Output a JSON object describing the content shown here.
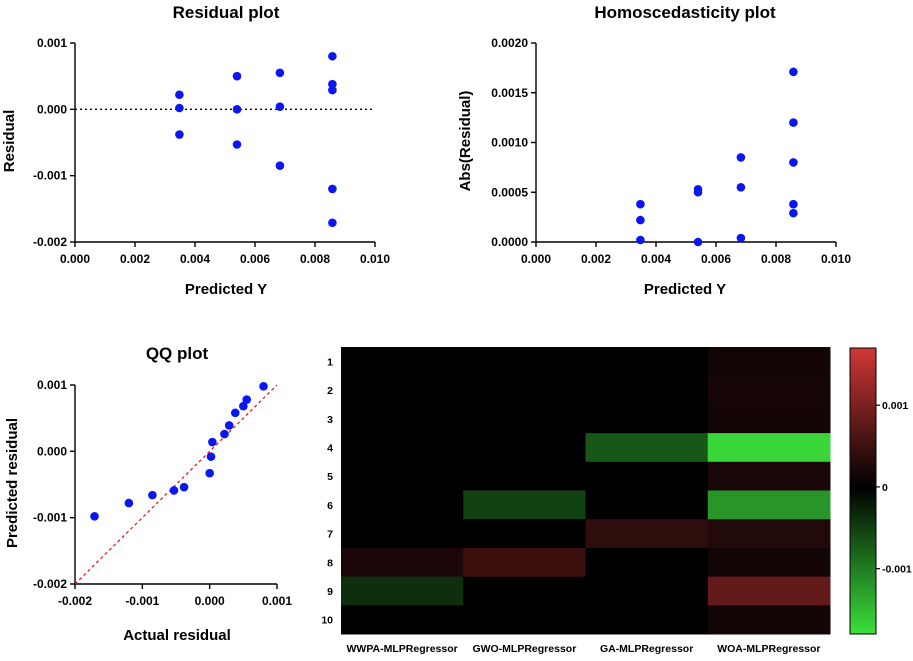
{
  "chart_data": [
    {
      "id": "residual",
      "type": "scatter",
      "title": "Residual plot",
      "xlabel": "Predicted Y",
      "ylabel": "Residual",
      "xlim": [
        0,
        0.01
      ],
      "ylim": [
        -0.002,
        0.001
      ],
      "xticks": [
        0,
        0.002,
        0.004,
        0.006,
        0.008,
        0.01
      ],
      "xtick_labels": [
        "0.000",
        "0.002",
        "0.004",
        "0.006",
        "0.008",
        "0.010"
      ],
      "yticks": [
        -0.002,
        -0.001,
        0,
        0.001
      ],
      "ytick_labels": [
        "-0.002",
        "-0.001",
        "0.000",
        "0.001"
      ],
      "reference_line": {
        "y": 0,
        "style": "dotted"
      },
      "points": [
        {
          "x": 0.00348,
          "y": 0.00022
        },
        {
          "x": 0.00348,
          "y": 2e-05
        },
        {
          "x": 0.00348,
          "y": -0.00038
        },
        {
          "x": 0.0054,
          "y": 0.0005
        },
        {
          "x": 0.0054,
          "y": 0.0
        },
        {
          "x": 0.0054,
          "y": -0.00053
        },
        {
          "x": 0.00683,
          "y": 0.00055
        },
        {
          "x": 0.00683,
          "y": 4e-05
        },
        {
          "x": 0.00683,
          "y": -0.00085
        },
        {
          "x": 0.00858,
          "y": 0.0008
        },
        {
          "x": 0.00858,
          "y": 0.00038
        },
        {
          "x": 0.00858,
          "y": 0.00029
        },
        {
          "x": 0.00858,
          "y": -0.0012
        },
        {
          "x": 0.00858,
          "y": -0.00171
        }
      ]
    },
    {
      "id": "homoscedasticity",
      "type": "scatter",
      "title": "Homoscedasticity plot",
      "xlabel": "Predicted Y",
      "ylabel": "Abs(Residual)",
      "xlim": [
        0,
        0.01
      ],
      "ylim": [
        0,
        0.002
      ],
      "xticks": [
        0,
        0.002,
        0.004,
        0.006,
        0.008,
        0.01
      ],
      "xtick_labels": [
        "0.000",
        "0.002",
        "0.004",
        "0.006",
        "0.008",
        "0.010"
      ],
      "yticks": [
        0,
        0.0005,
        0.001,
        0.0015,
        0.002
      ],
      "ytick_labels": [
        "0.0000",
        "0.0005",
        "0.0010",
        "0.0015",
        "0.0020"
      ],
      "points": [
        {
          "x": 0.00348,
          "y": 0.00038
        },
        {
          "x": 0.00348,
          "y": 0.00022
        },
        {
          "x": 0.00348,
          "y": 2e-05
        },
        {
          "x": 0.0054,
          "y": 0.00053
        },
        {
          "x": 0.0054,
          "y": 0.0005
        },
        {
          "x": 0.0054,
          "y": 0.0
        },
        {
          "x": 0.00683,
          "y": 0.00085
        },
        {
          "x": 0.00683,
          "y": 0.00055
        },
        {
          "x": 0.00683,
          "y": 4e-05
        },
        {
          "x": 0.00858,
          "y": 0.00171
        },
        {
          "x": 0.00858,
          "y": 0.0012
        },
        {
          "x": 0.00858,
          "y": 0.0008
        },
        {
          "x": 0.00858,
          "y": 0.00038
        },
        {
          "x": 0.00858,
          "y": 0.00029
        }
      ]
    },
    {
      "id": "qq",
      "type": "scatter",
      "title": "QQ plot",
      "xlabel": "Actual residual",
      "ylabel": "Predicted residual",
      "xlim": [
        -0.002,
        0.001
      ],
      "ylim": [
        -0.002,
        0.001
      ],
      "xticks": [
        -0.002,
        -0.001,
        0,
        0.001
      ],
      "xtick_labels": [
        "-0.002",
        "-0.001",
        "0.000",
        "0.001"
      ],
      "yticks": [
        -0.002,
        -0.001,
        0,
        0.001
      ],
      "ytick_labels": [
        "-0.002",
        "-0.001",
        "0.000",
        "0.001"
      ],
      "reference_line": {
        "from": [
          -0.002,
          -0.002
        ],
        "to": [
          0.001,
          0.001
        ],
        "style": "dashed",
        "color": "#ff0000"
      },
      "points": [
        {
          "x": -0.00171,
          "y": -0.00098
        },
        {
          "x": -0.0012,
          "y": -0.00078
        },
        {
          "x": -0.00085,
          "y": -0.00066
        },
        {
          "x": -0.00053,
          "y": -0.00059
        },
        {
          "x": -0.00038,
          "y": -0.00054
        },
        {
          "x": 0.0,
          "y": -0.00033
        },
        {
          "x": 2e-05,
          "y": -8e-05
        },
        {
          "x": 4e-05,
          "y": 0.00014
        },
        {
          "x": 0.00022,
          "y": 0.00026
        },
        {
          "x": 0.00029,
          "y": 0.00039
        },
        {
          "x": 0.00038,
          "y": 0.00058
        },
        {
          "x": 0.0005,
          "y": 0.00068
        },
        {
          "x": 0.00055,
          "y": 0.00078
        },
        {
          "x": 0.0008,
          "y": 0.00098
        }
      ]
    },
    {
      "id": "heatmap",
      "type": "heatmap",
      "rows": [
        "1",
        "2",
        "3",
        "4",
        "5",
        "6",
        "7",
        "8",
        "9",
        "10"
      ],
      "columns": [
        "WWPA-MLPRegressor",
        "GWO-MLPRegressor",
        "GA-MLPRegressor",
        "WOA-MLPRegressor"
      ],
      "values": [
        [
          0,
          0,
          0,
          0.00015
        ],
        [
          0,
          0,
          0,
          0.00018
        ],
        [
          0,
          0,
          0,
          0.00016
        ],
        [
          0,
          0,
          -0.0007,
          -0.00171
        ],
        [
          0,
          0,
          0,
          0.00022
        ],
        [
          0,
          -0.00053,
          0,
          -0.0012
        ],
        [
          0,
          0,
          0.00038,
          0.00029
        ],
        [
          0.00022,
          0.0005,
          0,
          0.00015
        ],
        [
          -0.00038,
          0,
          0,
          0.0008
        ],
        [
          0,
          0,
          0,
          0.00016
        ]
      ],
      "colorbar": {
        "min": -0.0018,
        "max": 0.0017,
        "ticks": [
          0.001,
          0,
          -0.001
        ],
        "tick_labels": [
          "0.001",
          "0",
          "-0.001"
        ]
      },
      "colors": {
        "positive": "#d03838",
        "zero": "#000000",
        "negative": "#3ce03c"
      }
    }
  ],
  "colors": {
    "point": "#0b17f0",
    "axis": "#000000",
    "qq_line": "#ff0000"
  }
}
